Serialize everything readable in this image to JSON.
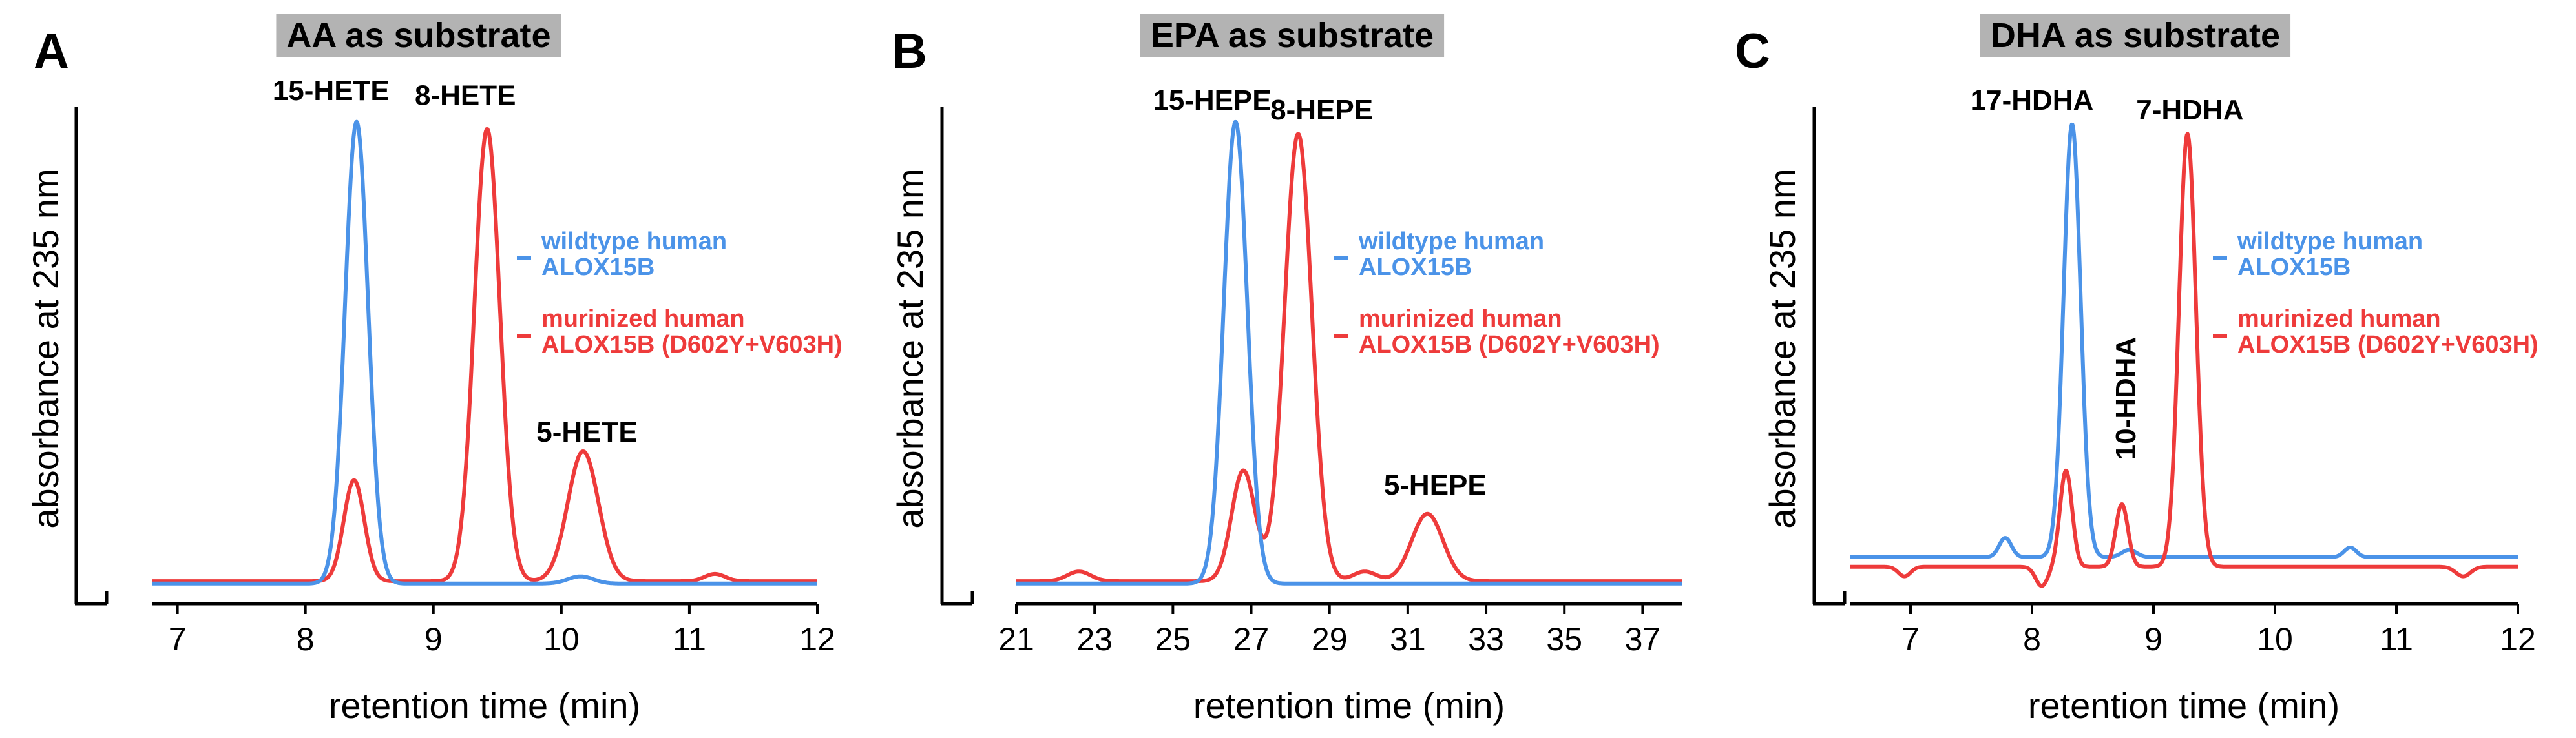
{
  "colors": {
    "wildtype": "#4b93e8",
    "murinized": "#ee3b3b",
    "title_bg": "#b3b3b3"
  },
  "chart_data": [
    {
      "panel": "A",
      "type": "line",
      "title": "AA as substrate",
      "xlabel": "retention time (min)",
      "ylabel": "absorbance at 235 nm",
      "xlim": [
        6.8,
        12
      ],
      "ylim": [
        0,
        100
      ],
      "xticks": [
        7,
        8,
        9,
        10,
        11,
        12
      ],
      "series": [
        {
          "name": "wildtype human ALOX15B",
          "color": "#4b93e8",
          "baseline": 1.5,
          "peaks": [
            {
              "x": 8.4,
              "height": 96,
              "width": 0.09
            },
            {
              "x": 10.15,
              "height": 1.5,
              "width": 0.1
            }
          ]
        },
        {
          "name": "murinized human ALOX15B (D602Y+V603H)",
          "color": "#ee3b3b",
          "baseline": 2,
          "peaks": [
            {
              "x": 8.38,
              "height": 21,
              "width": 0.08
            },
            {
              "x": 9.42,
              "height": 94,
              "width": 0.1
            },
            {
              "x": 10.17,
              "height": 27,
              "width": 0.12
            },
            {
              "x": 11.2,
              "height": 1.5,
              "width": 0.08
            }
          ]
        }
      ],
      "annotations": [
        {
          "text": "15-HETE",
          "x": 8.2,
          "y": 102
        },
        {
          "text": "8-HETE",
          "x": 9.25,
          "y": 101
        },
        {
          "text": "5-HETE",
          "x": 10.2,
          "y": 31
        }
      ]
    },
    {
      "panel": "B",
      "type": "line",
      "title": "EPA as substrate",
      "xlabel": "retention time (min)",
      "ylabel": "absorbance at 235 nm",
      "xlim": [
        21,
        38
      ],
      "ylim": [
        0,
        100
      ],
      "xticks": [
        21,
        23,
        25,
        27,
        29,
        31,
        33,
        35,
        37
      ],
      "series": [
        {
          "name": "wildtype human ALOX15B",
          "color": "#4b93e8",
          "baseline": 1.5,
          "peaks": [
            {
              "x": 26.6,
              "height": 96,
              "width": 0.3
            }
          ]
        },
        {
          "name": "murinized human ALOX15B (D602Y+V603H)",
          "color": "#ee3b3b",
          "baseline": 2,
          "peaks": [
            {
              "x": 22.6,
              "height": 2,
              "width": 0.3
            },
            {
              "x": 26.8,
              "height": 23,
              "width": 0.3
            },
            {
              "x": 28.2,
              "height": 93,
              "width": 0.35
            },
            {
              "x": 29.9,
              "height": 2,
              "width": 0.3
            },
            {
              "x": 31.5,
              "height": 14,
              "width": 0.4
            }
          ]
        }
      ],
      "annotations": [
        {
          "text": "15-HEPE",
          "x": 26.0,
          "y": 100
        },
        {
          "text": "8-HEPE",
          "x": 28.8,
          "y": 98
        },
        {
          "text": "5-HEPE",
          "x": 31.7,
          "y": 20
        }
      ]
    },
    {
      "panel": "C",
      "type": "line",
      "title": "DHA as substrate",
      "xlabel": "retention time (min)",
      "ylabel": "absorbance at 235 nm",
      "xlim": [
        6.5,
        12
      ],
      "ylim": [
        0,
        100
      ],
      "xticks": [
        7,
        8,
        9,
        10,
        11,
        12
      ],
      "series": [
        {
          "name": "wildtype human ALOX15B",
          "color": "#4b93e8",
          "baseline": 7,
          "peaks": [
            {
              "x": 7.78,
              "height": 4,
              "width": 0.05
            },
            {
              "x": 8.33,
              "height": 90,
              "width": 0.07
            },
            {
              "x": 8.8,
              "height": 1.5,
              "width": 0.06
            },
            {
              "x": 10.62,
              "height": 2,
              "width": 0.05
            }
          ]
        },
        {
          "name": "murinized human ALOX15B (D602Y+V603H)",
          "color": "#ee3b3b",
          "baseline": 5,
          "peaks": [
            {
              "x": 6.95,
              "height": -2,
              "width": 0.05
            },
            {
              "x": 8.08,
              "height": -4,
              "width": 0.05
            },
            {
              "x": 8.28,
              "height": 20,
              "width": 0.05
            },
            {
              "x": 8.74,
              "height": 13,
              "width": 0.05
            },
            {
              "x": 9.28,
              "height": 90,
              "width": 0.07
            },
            {
              "x": 11.55,
              "height": -2,
              "width": 0.06
            }
          ]
        }
      ],
      "annotations": [
        {
          "text": "17-HDHA",
          "x": 8.0,
          "y": 100
        },
        {
          "text": "7-HDHA",
          "x": 9.3,
          "y": 98
        },
        {
          "text": "10-HDHA",
          "x": 8.85,
          "y": 40,
          "rotated": true
        }
      ]
    }
  ]
}
